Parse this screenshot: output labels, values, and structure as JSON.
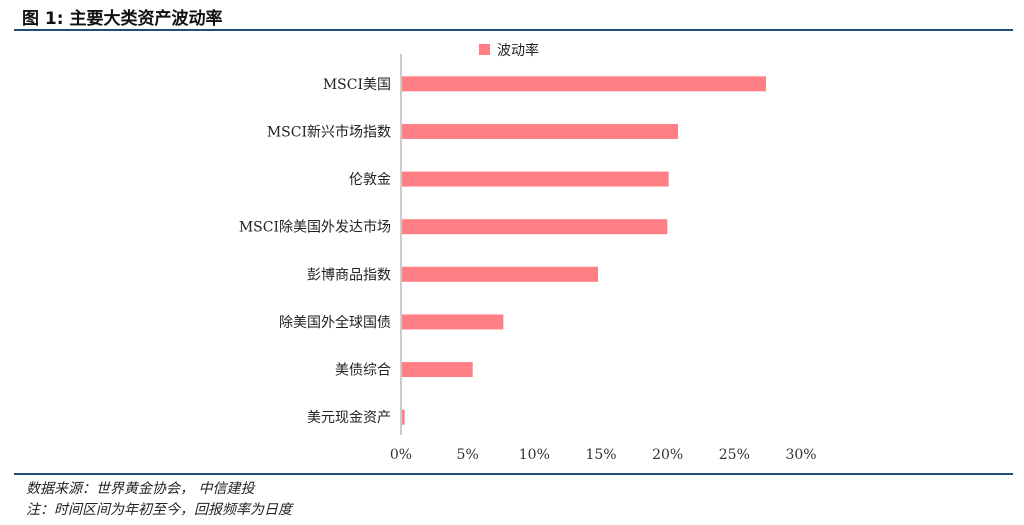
{
  "figure": {
    "title": "图 1: 主要大类资产波动率"
  },
  "chart_data": {
    "type": "bar",
    "orientation": "horizontal",
    "title": "",
    "xlabel": "",
    "ylabel": "",
    "categories": [
      "MSCI美国",
      "MSCI新兴市场指数",
      "伦敦金",
      "MSCI除美国外发达市场",
      "彭博商品指数",
      "除美国外全球国债",
      "美债综合",
      "美元现金资产"
    ],
    "series": [
      {
        "name": "波动率",
        "values": [
          27.3,
          20.7,
          20.0,
          19.9,
          14.7,
          7.6,
          5.3,
          0.2
        ]
      }
    ],
    "xlim": [
      0,
      30
    ],
    "xticks": [
      "0%",
      "5%",
      "10%",
      "15%",
      "20%",
      "25%",
      "30%"
    ],
    "grid": false,
    "legend_position": "top",
    "colors": {
      "bar": "#ff7f85",
      "axis": "#999999"
    }
  },
  "footer": {
    "source": "数据来源：世界黄金协会， 中信建投",
    "note": "注：时间区间为年初至今，回报频率为日度"
  }
}
